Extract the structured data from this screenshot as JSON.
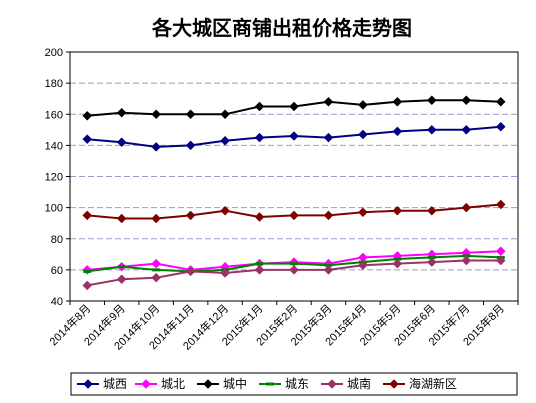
{
  "chart_data": {
    "type": "line",
    "title": "各大城区商铺出租价格走势图",
    "xlabel": "",
    "ylabel": "",
    "ylim": [
      40,
      200
    ],
    "yticks": [
      "40",
      "60",
      "80",
      "100",
      "120",
      "140",
      "160",
      "180",
      "200"
    ],
    "grid": "horizontal dashed",
    "legend_position": "bottom",
    "categories": [
      "2014年8月",
      "2014年9月",
      "2014年10月",
      "2014年11月",
      "2014年12月",
      "2015年1月",
      "2015年2月",
      "2015年3月",
      "2015年4月",
      "2015年5月",
      "2015年6月",
      "2015年7月",
      "2015年8月"
    ],
    "series": [
      {
        "name": "城西",
        "color": "#000080",
        "marker": "diamond",
        "values": [
          144,
          142,
          139,
          140,
          143,
          145,
          146,
          145,
          147,
          149,
          150,
          150,
          152
        ]
      },
      {
        "name": "城北",
        "color": "#FF00FF",
        "marker": "diamond",
        "values": [
          60,
          62,
          64,
          60,
          62,
          64,
          65,
          64,
          68,
          69,
          70,
          71,
          72
        ]
      },
      {
        "name": "城中",
        "color": "#000000",
        "marker": "diamond",
        "values": [
          159,
          161,
          160,
          160,
          160,
          165,
          165,
          168,
          166,
          168,
          169,
          169,
          168
        ]
      },
      {
        "name": "城东",
        "color": "#008000",
        "marker": "dash",
        "values": [
          59,
          62,
          60,
          59,
          60,
          64,
          64,
          63,
          65,
          67,
          68,
          69,
          68
        ]
      },
      {
        "name": "城南",
        "color": "#993366",
        "marker": "diamond",
        "values": [
          50,
          54,
          55,
          59,
          58,
          60,
          60,
          60,
          63,
          64,
          65,
          66,
          66
        ]
      },
      {
        "name": "海湖新区",
        "color": "#800000",
        "marker": "diamond",
        "values": [
          95,
          93,
          93,
          95,
          98,
          94,
          95,
          95,
          97,
          98,
          98,
          100,
          102
        ]
      }
    ]
  }
}
